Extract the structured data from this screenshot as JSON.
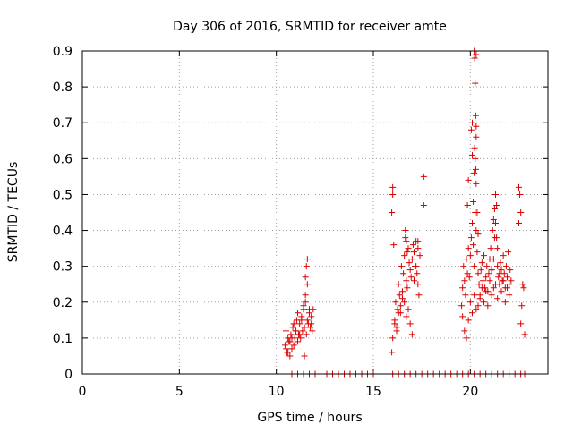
{
  "chart_data": {
    "type": "scatter",
    "title": "Day 306 of 2016, SRMTID for receiver amte",
    "xlabel": "GPS time / hours",
    "ylabel": "SRMTID / TECUs",
    "xlim": [
      0,
      24
    ],
    "ylim": [
      0,
      0.9
    ],
    "x_ticks": [
      0,
      5,
      10,
      15,
      20
    ],
    "y_ticks": [
      0,
      0.1,
      0.2,
      0.3,
      0.4,
      0.5,
      0.6,
      0.7,
      0.8,
      0.9
    ],
    "x_tick_labels": [
      "0",
      "5",
      "10",
      "15",
      "20"
    ],
    "y_tick_labels": [
      "0",
      "0.1",
      "0.2",
      "0.3",
      "0.4",
      "0.5",
      "0.6",
      "0.7",
      "0.8",
      "0.9"
    ],
    "grid": true,
    "marker": "+",
    "marker_color": "#dd0000",
    "series": [
      {
        "name": "SRMTID",
        "x": [
          10.45,
          10.5,
          10.55,
          10.6,
          10.65,
          10.7,
          10.75,
          10.8,
          10.85,
          10.9,
          10.95,
          11.0,
          11.05,
          11.1,
          11.15,
          11.2,
          11.25,
          11.3,
          11.35,
          11.4,
          11.45,
          11.5,
          11.55,
          11.6,
          11.65,
          11.7,
          11.75,
          11.8,
          11.85,
          11.9,
          10.5,
          10.6,
          10.7,
          10.8,
          10.9,
          11.0,
          11.1,
          11.2,
          11.3,
          11.4,
          11.5,
          11.6,
          11.7,
          11.8,
          11.55,
          11.6,
          11.5,
          11.45,
          15.95,
          16.0,
          16.05,
          16.1,
          16.15,
          16.2,
          16.25,
          16.3,
          16.35,
          16.4,
          16.45,
          16.5,
          16.55,
          16.6,
          16.65,
          16.7,
          16.75,
          16.8,
          16.85,
          16.9,
          16.95,
          17.0,
          17.05,
          17.1,
          17.15,
          17.2,
          17.25,
          17.3,
          17.35,
          17.4,
          16.0,
          16.1,
          16.2,
          16.3,
          16.4,
          16.5,
          16.6,
          16.7,
          16.8,
          16.9,
          17.0,
          17.1,
          17.2,
          17.3,
          16.0,
          15.95,
          16.65,
          16.7,
          16.75,
          17.3,
          17.6,
          17.6,
          19.55,
          19.6,
          19.65,
          19.7,
          19.75,
          19.8,
          19.85,
          19.9,
          19.95,
          20.0,
          20.05,
          20.1,
          20.15,
          20.2,
          20.25,
          20.3,
          20.35,
          20.4,
          20.45,
          20.5,
          20.55,
          20.6,
          20.65,
          20.7,
          20.75,
          20.8,
          20.85,
          20.9,
          20.95,
          21.0,
          21.05,
          21.1,
          21.15,
          21.2,
          21.25,
          21.3,
          21.35,
          21.4,
          21.45,
          21.5,
          21.55,
          21.6,
          21.65,
          21.7,
          21.75,
          21.8,
          21.85,
          21.9,
          21.95,
          22.0,
          22.05,
          22.1,
          19.6,
          19.7,
          19.8,
          19.9,
          20.0,
          20.1,
          20.2,
          20.3,
          20.4,
          20.5,
          20.6,
          20.7,
          20.8,
          20.9,
          21.0,
          21.1,
          21.2,
          21.3,
          21.4,
          21.5,
          21.6,
          21.7,
          21.8,
          21.9,
          22.0,
          20.2,
          20.22,
          20.25,
          20.28,
          20.3,
          20.3,
          20.25,
          20.2,
          20.15,
          20.1,
          20.3,
          20.35,
          20.28,
          20.22,
          20.4,
          19.9,
          19.85,
          20.05,
          20.1,
          20.3,
          21.3,
          21.35,
          21.25,
          21.4,
          21.2,
          21.1,
          22.5,
          22.55,
          22.6,
          22.5,
          22.7,
          22.75,
          22.8,
          22.6,
          22.65,
          10.5,
          10.8,
          11.1,
          11.4,
          11.7,
          12.0,
          12.3,
          12.6,
          12.9,
          13.2,
          13.5,
          13.8,
          14.1,
          14.4,
          14.7,
          15.0,
          16.0,
          16.3,
          16.6,
          16.9,
          17.2,
          17.5,
          17.8,
          18.1,
          18.4,
          18.7,
          19.0,
          19.3,
          19.6,
          19.9,
          20.2,
          20.5,
          20.8,
          21.1,
          21.4,
          21.7,
          22.0,
          22.3,
          22.6,
          22.8
        ],
        "y": [
          0.08,
          0.12,
          0.06,
          0.1,
          0.09,
          0.05,
          0.11,
          0.07,
          0.13,
          0.08,
          0.1,
          0.12,
          0.15,
          0.09,
          0.11,
          0.14,
          0.1,
          0.16,
          0.12,
          0.18,
          0.13,
          0.2,
          0.11,
          0.15,
          0.14,
          0.17,
          0.13,
          0.16,
          0.12,
          0.18,
          0.07,
          0.06,
          0.09,
          0.1,
          0.14,
          0.12,
          0.17,
          0.11,
          0.15,
          0.19,
          0.22,
          0.25,
          0.18,
          0.14,
          0.3,
          0.32,
          0.27,
          0.05,
          0.45,
          0.52,
          0.36,
          0.15,
          0.2,
          0.13,
          0.18,
          0.25,
          0.22,
          0.17,
          0.3,
          0.21,
          0.28,
          0.33,
          0.38,
          0.26,
          0.24,
          0.35,
          0.31,
          0.29,
          0.27,
          0.32,
          0.36,
          0.34,
          0.3,
          0.37,
          0.28,
          0.25,
          0.22,
          0.33,
          0.1,
          0.14,
          0.12,
          0.17,
          0.19,
          0.23,
          0.2,
          0.16,
          0.18,
          0.14,
          0.11,
          0.26,
          0.3,
          0.35,
          0.5,
          0.06,
          0.4,
          0.37,
          0.34,
          0.37,
          0.55,
          0.47,
          0.19,
          0.24,
          0.3,
          0.26,
          0.22,
          0.32,
          0.28,
          0.35,
          0.27,
          0.33,
          0.38,
          0.42,
          0.36,
          0.3,
          0.45,
          0.4,
          0.34,
          0.28,
          0.25,
          0.22,
          0.29,
          0.31,
          0.26,
          0.33,
          0.24,
          0.27,
          0.3,
          0.23,
          0.28,
          0.32,
          0.35,
          0.29,
          0.4,
          0.43,
          0.46,
          0.5,
          0.38,
          0.3,
          0.27,
          0.25,
          0.31,
          0.29,
          0.26,
          0.33,
          0.28,
          0.24,
          0.3,
          0.27,
          0.34,
          0.25,
          0.29,
          0.26,
          0.16,
          0.12,
          0.1,
          0.15,
          0.2,
          0.17,
          0.22,
          0.18,
          0.19,
          0.21,
          0.24,
          0.2,
          0.23,
          0.19,
          0.26,
          0.22,
          0.24,
          0.25,
          0.21,
          0.28,
          0.23,
          0.26,
          0.2,
          0.24,
          0.22,
          0.9,
          0.88,
          0.81,
          0.72,
          0.69,
          0.66,
          0.6,
          0.56,
          0.48,
          0.61,
          0.53,
          0.45,
          0.57,
          0.63,
          0.39,
          0.54,
          0.47,
          0.68,
          0.7,
          0.89,
          0.42,
          0.47,
          0.38,
          0.35,
          0.32,
          0.29,
          0.52,
          0.5,
          0.45,
          0.42,
          0.25,
          0.24,
          0.11,
          0.14,
          0.19,
          0,
          0,
          0,
          0,
          0,
          0,
          0,
          0,
          0,
          0,
          0,
          0,
          0,
          0,
          0,
          0,
          0,
          0,
          0,
          0,
          0,
          0,
          0,
          0,
          0,
          0,
          0,
          0,
          0,
          0,
          0,
          0,
          0,
          0,
          0,
          0,
          0,
          0,
          0,
          0
        ]
      }
    ]
  }
}
